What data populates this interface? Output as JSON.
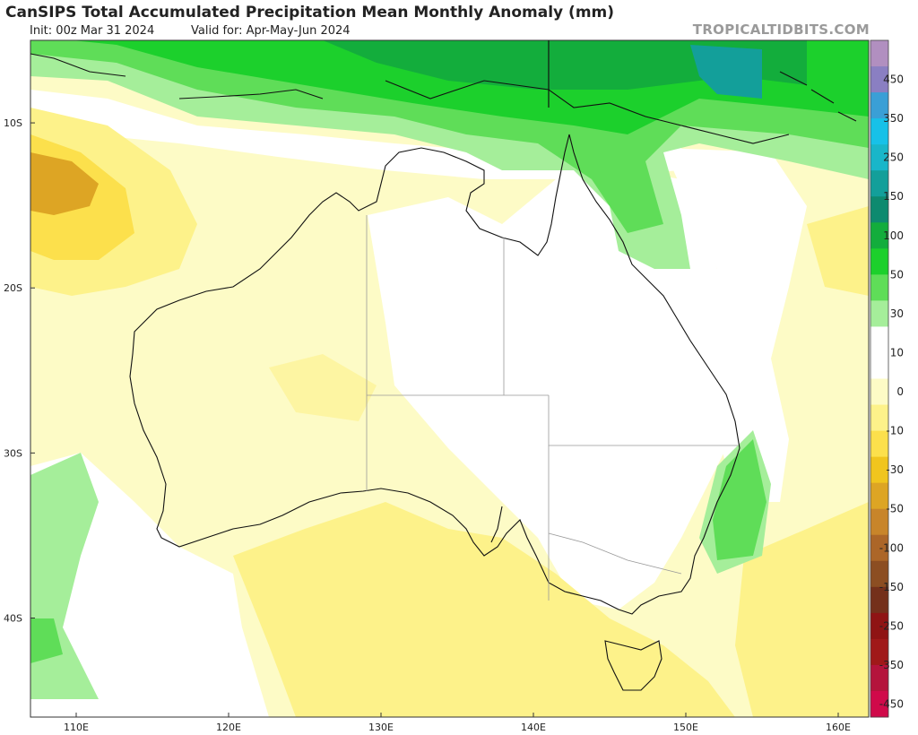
{
  "header": {
    "title": "CanSIPS Total Accumulated Precipitation Mean Monthly Anomaly (mm)",
    "init": "Init: 00z Mar 31 2024",
    "valid": "Valid for: Apr-May-Jun 2024",
    "brand": "TROPICALTIDBITS.COM"
  },
  "map": {
    "region": "Australia",
    "lon_range": [
      107,
      162
    ],
    "lat_range": [
      -46,
      -5
    ],
    "lat_labels": [
      "10S",
      "20S",
      "30S",
      "40S"
    ],
    "lon_labels": [
      "110E",
      "120E",
      "130E",
      "140E",
      "150E",
      "160E"
    ]
  },
  "colorbar": {
    "labels": [
      "450",
      "350",
      "250",
      "150",
      "100",
      "50",
      "30",
      "10",
      "0",
      "-10",
      "-30",
      "-50",
      "-100",
      "-150",
      "-250",
      "-350",
      "-450"
    ],
    "colors": [
      "#b18fc0",
      "#8a7fc2",
      "#3a9fd6",
      "#17c1e8",
      "#19b6c9",
      "#139f9a",
      "#0e8a6f",
      "#13ad3c",
      "#1cd02c",
      "#5fdd58",
      "#a5ee9a",
      "#ffffff",
      "#ffffff",
      "#fdfbc6",
      "#fdf28a",
      "#fce04c",
      "#f0c51e",
      "#dda524",
      "#c8852a",
      "#ac6628",
      "#8c4e22",
      "#74301b",
      "#8f1414",
      "#a01919",
      "#b4143c",
      "#d00a4a"
    ]
  }
}
